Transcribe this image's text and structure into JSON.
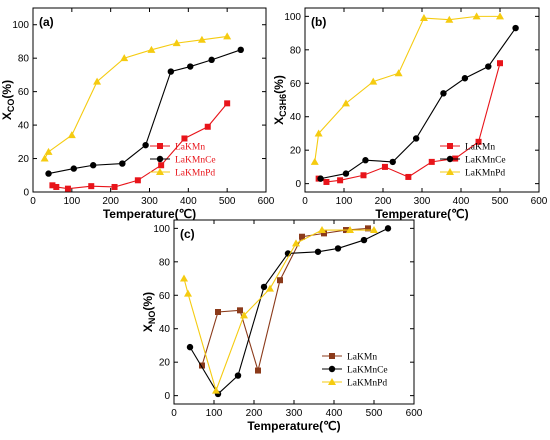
{
  "chart_data": [
    {
      "type": "line",
      "panel_label": "(a)",
      "xlabel": "Temperature(℃)",
      "ylabel_main": "X",
      "ylabel_sub": "CO",
      "ylabel_tail": "(%)",
      "xlim": [
        0,
        600
      ],
      "ylim": [
        0,
        110
      ],
      "xticks": [
        0,
        100,
        200,
        300,
        400,
        500,
        600
      ],
      "yticks": [
        0,
        20,
        40,
        60,
        80,
        100
      ],
      "legend_position": "bottom-right",
      "series": [
        {
          "name": "LaKMn",
          "color": "#e8141a",
          "marker": "square",
          "x": [
            50,
            60,
            90,
            150,
            210,
            270,
            330,
            390,
            450,
            500
          ],
          "y": [
            4,
            3,
            2,
            3.5,
            3,
            7,
            16,
            32,
            39,
            53
          ]
        },
        {
          "name": "LaKMnCe",
          "color": "#000000",
          "marker": "circle",
          "x": [
            40,
            105,
            155,
            230,
            290,
            355,
            405,
            460,
            535
          ],
          "y": [
            11,
            14,
            16,
            17,
            28,
            72,
            75,
            79,
            85
          ]
        },
        {
          "name": "LaKMnPd",
          "color": "#f5cb10",
          "marker": "triangle",
          "x": [
            30,
            40,
            100,
            165,
            235,
            305,
            370,
            435,
            500
          ],
          "y": [
            20,
            24,
            34,
            66,
            80,
            85,
            89,
            91,
            93
          ]
        }
      ]
    },
    {
      "type": "line",
      "panel_label": "(b)",
      "xlabel": "Temperature(℃)",
      "ylabel_main": "X",
      "ylabel_sub": "C3H6",
      "ylabel_tail": "(%)",
      "xlim": [
        0,
        600
      ],
      "ylim": [
        -5,
        105
      ],
      "xticks": [
        0,
        100,
        200,
        300,
        400,
        500,
        600
      ],
      "yticks": [
        0,
        20,
        40,
        60,
        80,
        100
      ],
      "legend_position": "bottom-right",
      "series": [
        {
          "name": "LaKMn",
          "color": "#e8141a",
          "marker": "square",
          "x": [
            35,
            55,
            90,
            150,
            205,
            265,
            325,
            385,
            445,
            500
          ],
          "y": [
            3,
            1,
            2,
            5,
            10,
            4,
            13,
            15,
            25,
            72
          ]
        },
        {
          "name": "LaKMnCe",
          "color": "#000000",
          "marker": "circle",
          "x": [
            40,
            105,
            155,
            225,
            285,
            355,
            410,
            470,
            540
          ],
          "y": [
            3,
            6,
            14,
            13,
            27,
            54,
            63,
            70,
            93
          ]
        },
        {
          "name": "LaKMnPd",
          "color": "#f5cb10",
          "marker": "triangle",
          "x": [
            25,
            35,
            105,
            175,
            240,
            305,
            370,
            440,
            500
          ],
          "y": [
            13,
            30,
            48,
            61,
            66,
            99,
            98,
            100,
            100
          ]
        }
      ]
    },
    {
      "type": "line",
      "panel_label": "(c)",
      "xlabel": "Temperature(℃)",
      "ylabel_main": "X",
      "ylabel_sub": "NO",
      "ylabel_tail": "(%)",
      "xlim": [
        0,
        600
      ],
      "ylim": [
        -5,
        105
      ],
      "xticks": [
        0,
        100,
        200,
        300,
        400,
        500,
        600
      ],
      "yticks": [
        0,
        20,
        40,
        60,
        80,
        100
      ],
      "legend_position": "bottom-right",
      "series": [
        {
          "name": "LaKMn",
          "color": "#8b3a1a",
          "marker": "square",
          "x": [
            70,
            110,
            165,
            210,
            265,
            320,
            375,
            430,
            485
          ],
          "y": [
            18,
            50,
            51,
            15,
            69,
            95,
            97,
            99,
            100
          ]
        },
        {
          "name": "LaKMnCe",
          "color": "#000000",
          "marker": "circle",
          "x": [
            40,
            110,
            160,
            225,
            285,
            360,
            410,
            475,
            535
          ],
          "y": [
            29,
            1,
            12,
            65,
            85,
            86,
            88,
            93,
            100
          ]
        },
        {
          "name": "LaKMnPd",
          "color": "#f5cb10",
          "marker": "triangle",
          "x": [
            25,
            35,
            105,
            175,
            240,
            305,
            370,
            440,
            500
          ],
          "y": [
            70,
            61,
            3,
            48,
            64,
            91,
            99,
            99,
            99
          ]
        }
      ]
    }
  ]
}
